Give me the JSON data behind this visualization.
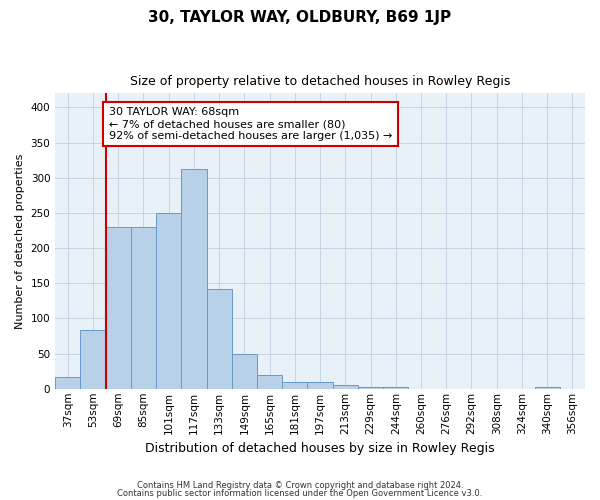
{
  "title1": "30, TAYLOR WAY, OLDBURY, B69 1JP",
  "title2": "Size of property relative to detached houses in Rowley Regis",
  "xlabel": "Distribution of detached houses by size in Rowley Regis",
  "ylabel": "Number of detached properties",
  "categories": [
    "37sqm",
    "53sqm",
    "69sqm",
    "85sqm",
    "101sqm",
    "117sqm",
    "133sqm",
    "149sqm",
    "165sqm",
    "181sqm",
    "197sqm",
    "213sqm",
    "229sqm",
    "244sqm",
    "260sqm",
    "276sqm",
    "292sqm",
    "308sqm",
    "324sqm",
    "340sqm",
    "356sqm"
  ],
  "values": [
    17,
    83,
    230,
    230,
    250,
    312,
    142,
    50,
    20,
    10,
    10,
    5,
    3,
    2,
    0,
    0,
    0,
    0,
    0,
    2,
    0
  ],
  "bar_color": "#b8d0e8",
  "bar_edgecolor": "#6699cc",
  "bar_linewidth": 0.7,
  "redline_index": 2,
  "redline_color": "#cc0000",
  "annotation_text": "30 TAYLOR WAY: 68sqm\n← 7% of detached houses are smaller (80)\n92% of semi-detached houses are larger (1,035) →",
  "annotation_box_edgecolor": "#cc0000",
  "annotation_box_facecolor": "#ffffff",
  "ylim": [
    0,
    420
  ],
  "yticks": [
    0,
    50,
    100,
    150,
    200,
    250,
    300,
    350,
    400
  ],
  "footer1": "Contains HM Land Registry data © Crown copyright and database right 2024.",
  "footer2": "Contains public sector information licensed under the Open Government Licence v3.0.",
  "background_color": "#ffffff",
  "plot_bg_color": "#e8f0f8",
  "grid_color": "#c0d0e0",
  "title1_fontsize": 11,
  "title2_fontsize": 9,
  "ylabel_fontsize": 8,
  "xlabel_fontsize": 9,
  "tick_fontsize": 7.5,
  "footer_fontsize": 6,
  "ann_fontsize": 8
}
